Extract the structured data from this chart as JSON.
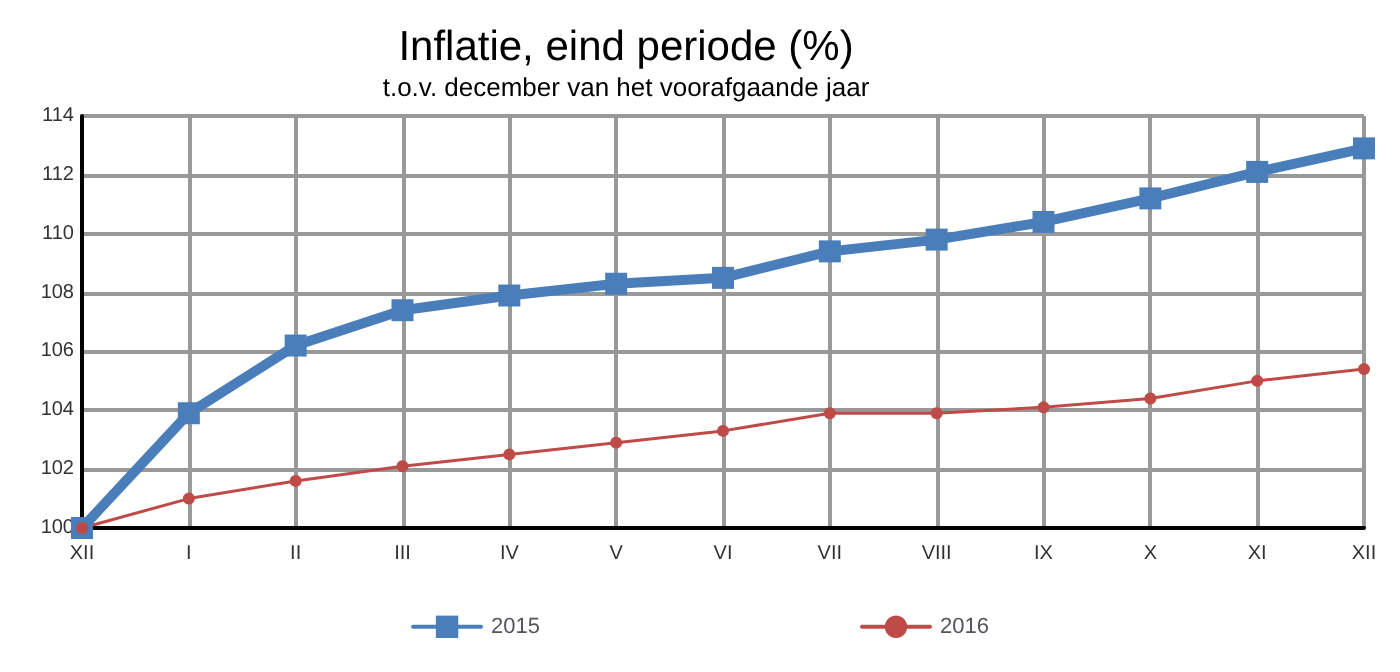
{
  "chart_data": {
    "type": "line",
    "title": "Inflatie, eind periode (%)",
    "subtitle": "t.o.v. december van het voorafgaande jaar",
    "categories": [
      "XII",
      "I",
      "II",
      "III",
      "IV",
      "V",
      "VI",
      "VII",
      "VIII",
      "IX",
      "X",
      "XI",
      "XII"
    ],
    "series": [
      {
        "name": "2015",
        "color": "#4a7ebb",
        "marker": "square",
        "values": [
          100,
          103.9,
          106.2,
          107.4,
          107.9,
          108.3,
          108.5,
          109.4,
          109.8,
          110.4,
          111.2,
          112.1,
          112.9
        ]
      },
      {
        "name": "2016",
        "color": "#be4b48",
        "marker": "circle",
        "values": [
          100,
          101.0,
          101.6,
          102.1,
          102.5,
          102.9,
          103.3,
          103.9,
          103.9,
          104.1,
          104.4,
          105.0,
          105.4
        ]
      }
    ],
    "ylim": [
      100,
      114
    ],
    "yticks": [
      100,
      102,
      104,
      106,
      108,
      110,
      112,
      114
    ],
    "grid": true,
    "legend": "bottom"
  }
}
